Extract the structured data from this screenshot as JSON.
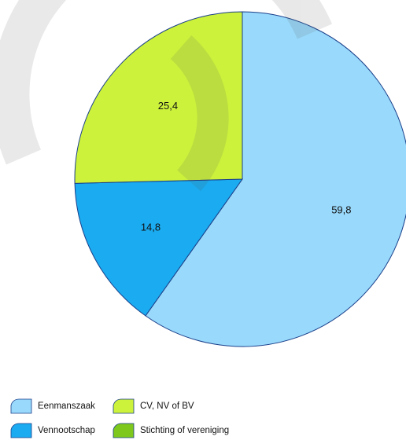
{
  "chart_data": {
    "type": "pie",
    "categories": [
      "Eenmanszaak",
      "Vennootschap",
      "CV, NV of BV",
      "Stichting of vereniging"
    ],
    "values": [
      59.8,
      14.8,
      25.4,
      0
    ],
    "value_labels": [
      "59,8",
      "14,8",
      "25,4",
      null
    ],
    "colors": [
      "#99d9fb",
      "#1aabf0",
      "#ccf23c",
      "#7ec81e"
    ]
  }
}
